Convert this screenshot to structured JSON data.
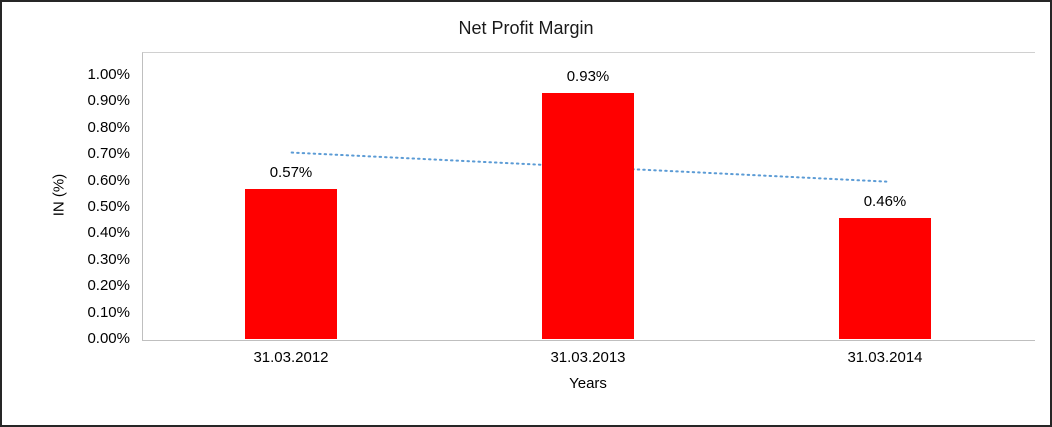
{
  "chart_data": {
    "type": "bar",
    "title": "Net Profit Margin",
    "categories": [
      "31.03.2012",
      "31.03.2013",
      "31.03.2014"
    ],
    "values": [
      0.57,
      0.93,
      0.46
    ],
    "value_labels": [
      "0.57%",
      "0.93%",
      "0.46%"
    ],
    "xlabel": "Years",
    "ylabel": "IN (%)",
    "ylim": [
      0,
      1.0
    ],
    "ytick_step": 0.1,
    "ytick_labels": [
      "0.00%",
      "0.10%",
      "0.20%",
      "0.30%",
      "0.40%",
      "0.50%",
      "0.60%",
      "0.70%",
      "0.80%",
      "0.90%",
      "1.00%"
    ],
    "grid": false,
    "legend": "none",
    "bar_color": "#FF0000",
    "axis_color": "#BFBFBF",
    "text_color": "#000000",
    "trendline": {
      "type": "linear",
      "style": "dotted",
      "color": "#5B9BD5",
      "start_value": 0.71,
      "end_value": 0.6
    }
  }
}
